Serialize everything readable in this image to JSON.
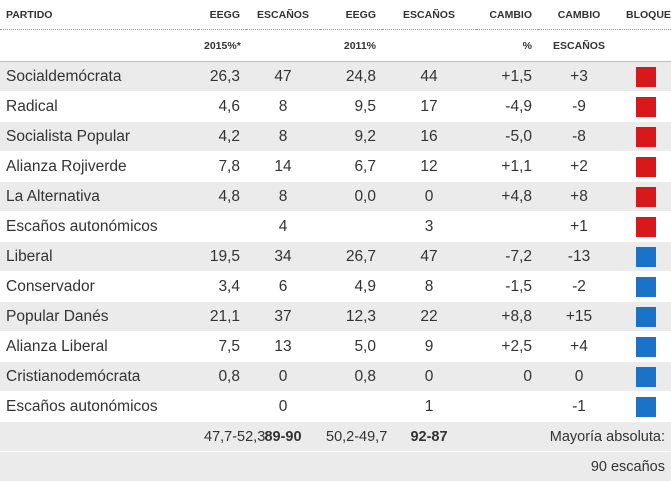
{
  "header": {
    "row1": [
      "PARTIDO",
      "EEGG",
      "ESCAÑOS",
      "EEGG",
      "ESCAÑOS",
      "CAMBIO",
      "CAMBIO",
      "BLOQUE"
    ],
    "row2": [
      null,
      "2015%*",
      null,
      "2011%",
      null,
      "%",
      "ESCAÑOS",
      null
    ]
  },
  "rows": [
    {
      "cells": [
        "Socialdemócrata",
        "26,3",
        "47",
        "24,8",
        "44",
        "+1,5",
        "+3"
      ],
      "color": "#d7191c"
    },
    {
      "cells": [
        "Radical",
        "4,6",
        "8",
        "9,5",
        "17",
        "-4,9",
        "-9"
      ],
      "color": "#d7191c"
    },
    {
      "cells": [
        "Socialista Popular",
        "4,2",
        "8",
        "9,2",
        "16",
        "-5,0",
        "-8"
      ],
      "color": "#d7191c"
    },
    {
      "cells": [
        "Alianza Rojiverde",
        "7,8",
        "14",
        "6,7",
        "12",
        "+1,1",
        "+2"
      ],
      "color": "#d7191c"
    },
    {
      "cells": [
        "La Alternativa",
        "4,8",
        "8",
        "0,0",
        "0",
        "+4,8",
        "+8"
      ],
      "color": "#d7191c"
    },
    {
      "cells": [
        "Escaños autonómicos",
        null,
        "4",
        null,
        "3",
        null,
        "+1"
      ],
      "color": "#d7191c"
    },
    {
      "cells": [
        "Liberal",
        "19,5",
        "34",
        "26,7",
        "47",
        "-7,2",
        "-13"
      ],
      "color": "#1a73c9"
    },
    {
      "cells": [
        "Conservador",
        "3,4",
        "6",
        "4,9",
        "8",
        "-1,5",
        "-2"
      ],
      "color": "#1a73c9"
    },
    {
      "cells": [
        "Popular Danés",
        "21,1",
        "37",
        "12,3",
        "22",
        "+8,8",
        "+15"
      ],
      "color": "#1a73c9"
    },
    {
      "cells": [
        "Alianza Liberal",
        "7,5",
        "13",
        "5,0",
        "9",
        "+2,5",
        "+4"
      ],
      "color": "#1a73c9"
    },
    {
      "cells": [
        "Cristianodemócrata",
        "0,8",
        "0",
        "0,8",
        "0",
        "0",
        "0"
      ],
      "color": "#1a73c9"
    },
    {
      "cells": [
        "Escaños autonómicos",
        null,
        "0",
        null,
        "1",
        null,
        "-1"
      ],
      "color": "#1a73c9"
    }
  ],
  "footer": {
    "row1": [
      "47,7-52,3",
      "89-90",
      "50,2-49,7",
      "92-87",
      "Mayoría absoluta:"
    ],
    "row2": "90 escaños"
  }
}
